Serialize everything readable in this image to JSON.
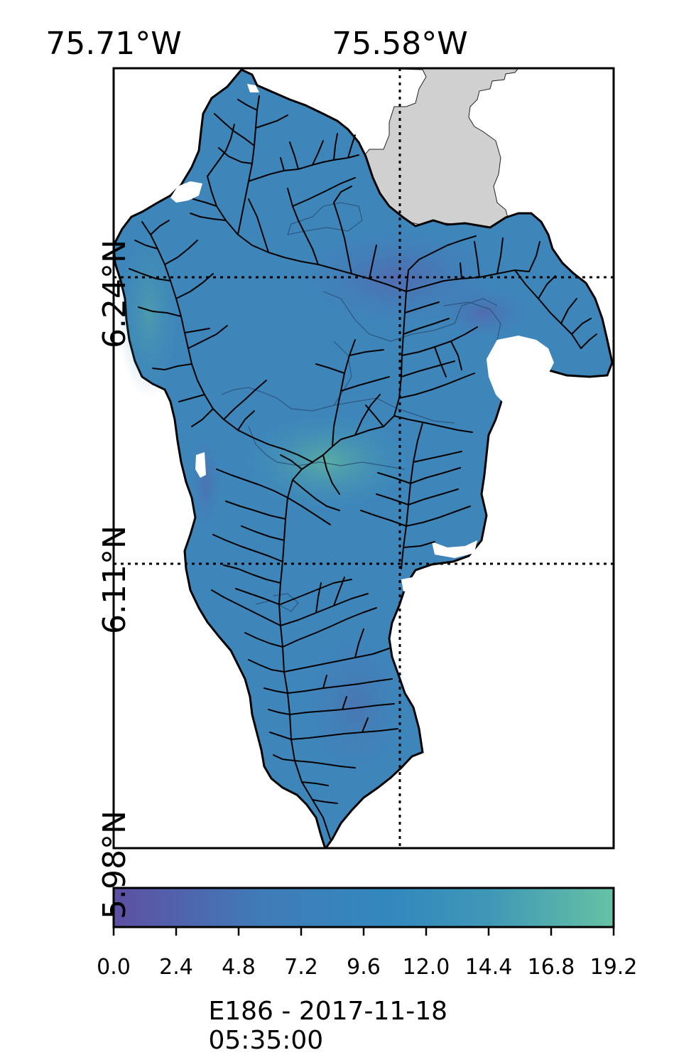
{
  "map": {
    "lon_labels": [
      "75.71°W",
      "75.58°W"
    ],
    "lat_labels": [
      "6.24°N",
      "6.11°N",
      "5.98°N"
    ]
  },
  "colorbar": {
    "ticks": [
      "0.0",
      "2.4",
      "4.8",
      "7.2",
      "9.6",
      "12.0",
      "14.4",
      "16.8",
      "19.2"
    ],
    "min": 0.0,
    "max": 19.2,
    "colors": [
      "#5e4fa2",
      "#3f7cb8",
      "#3288bd",
      "#3f97b7",
      "#66c2a5"
    ],
    "title": "E186 - 2017-11-18 05:35:00"
  }
}
